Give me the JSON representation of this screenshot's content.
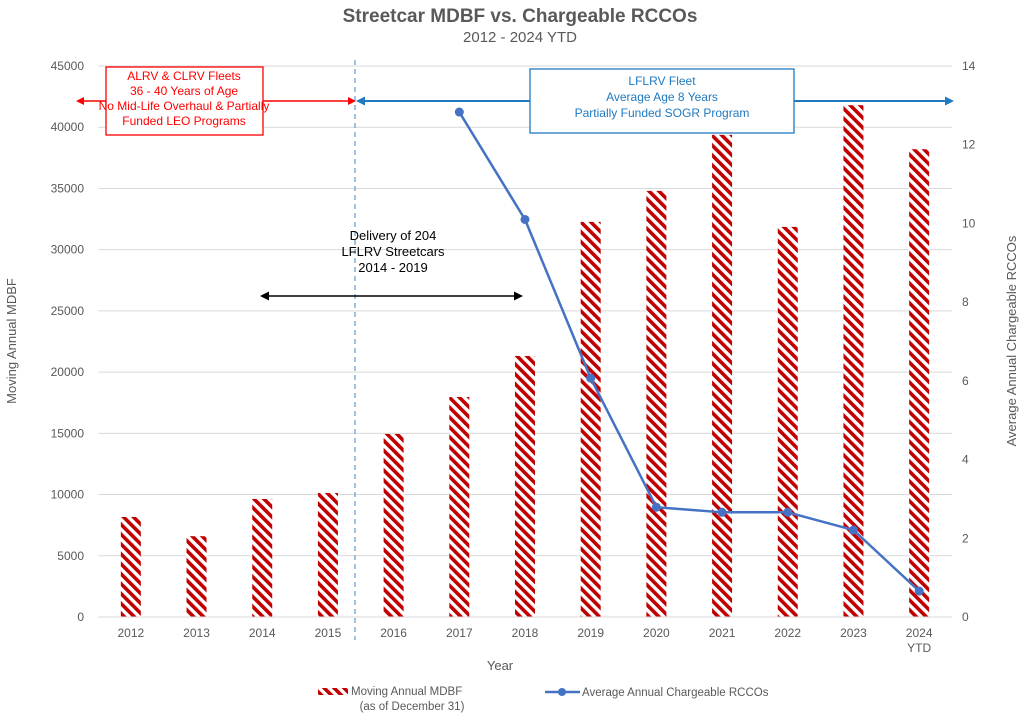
{
  "chart_data": {
    "type": "bar",
    "title": "Streetcar MDBF vs. Chargeable RCCOs",
    "subtitle": "2012 - 2024 YTD",
    "xlabel": "Year",
    "ylabel": "Moving Annual MDBF",
    "y2label": "Average Annual Chargeable RCCOs",
    "categories": [
      "2012",
      "2013",
      "2014",
      "2015",
      "2016",
      "2017",
      "2018",
      "2019",
      "2020",
      "2021",
      "2022",
      "2023",
      "2024\nYTD"
    ],
    "ylim": [
      0,
      45000
    ],
    "yticks": [
      "0",
      "5000",
      "10000",
      "15000",
      "20000",
      "25000",
      "30000",
      "35000",
      "40000",
      "45000"
    ],
    "y2lim": [
      0,
      14
    ],
    "y2ticks": [
      "0",
      "2",
      "4",
      "6",
      "8",
      "10",
      "12",
      "14"
    ],
    "grid": true,
    "legend_position": "bottom",
    "series": [
      {
        "name": "Moving Annual MDBF (as of December 31)",
        "legend_line1": "Moving Annual MDBF",
        "legend_line2": "(as of December 31)",
        "type": "bar",
        "axis": "left",
        "color": "#c00000",
        "values": [
          8170,
          6600,
          9640,
          10130,
          14950,
          17970,
          21320,
          32270,
          34800,
          39380,
          31860,
          41800,
          38200
        ]
      },
      {
        "name": "Average Annual Chargeable RCCOs",
        "type": "line",
        "axis": "right",
        "color": "#4472c4",
        "values": [
          null,
          null,
          null,
          null,
          null,
          12.83,
          10.1,
          6.07,
          2.79,
          2.66,
          2.66,
          2.21,
          0.66
        ]
      }
    ],
    "annotations": [
      {
        "id": "old-fleet",
        "lines": [
          "ALRV & CLRV Fleets",
          "36 - 40 Years of Age",
          "No Mid-Life Overhaul & Partially",
          "Funded  LEO Programs"
        ],
        "color": "#ff0000"
      },
      {
        "id": "new-fleet",
        "lines": [
          "LFLRV Fleet",
          "Average Age 8 Years",
          "Partially Funded SOGR Program"
        ],
        "color": "#1f7ac0"
      },
      {
        "id": "delivery",
        "lines": [
          "Delivery of 204",
          "LFLRV Streetcars",
          "2014 - 2019"
        ],
        "color": "#000000"
      }
    ]
  }
}
